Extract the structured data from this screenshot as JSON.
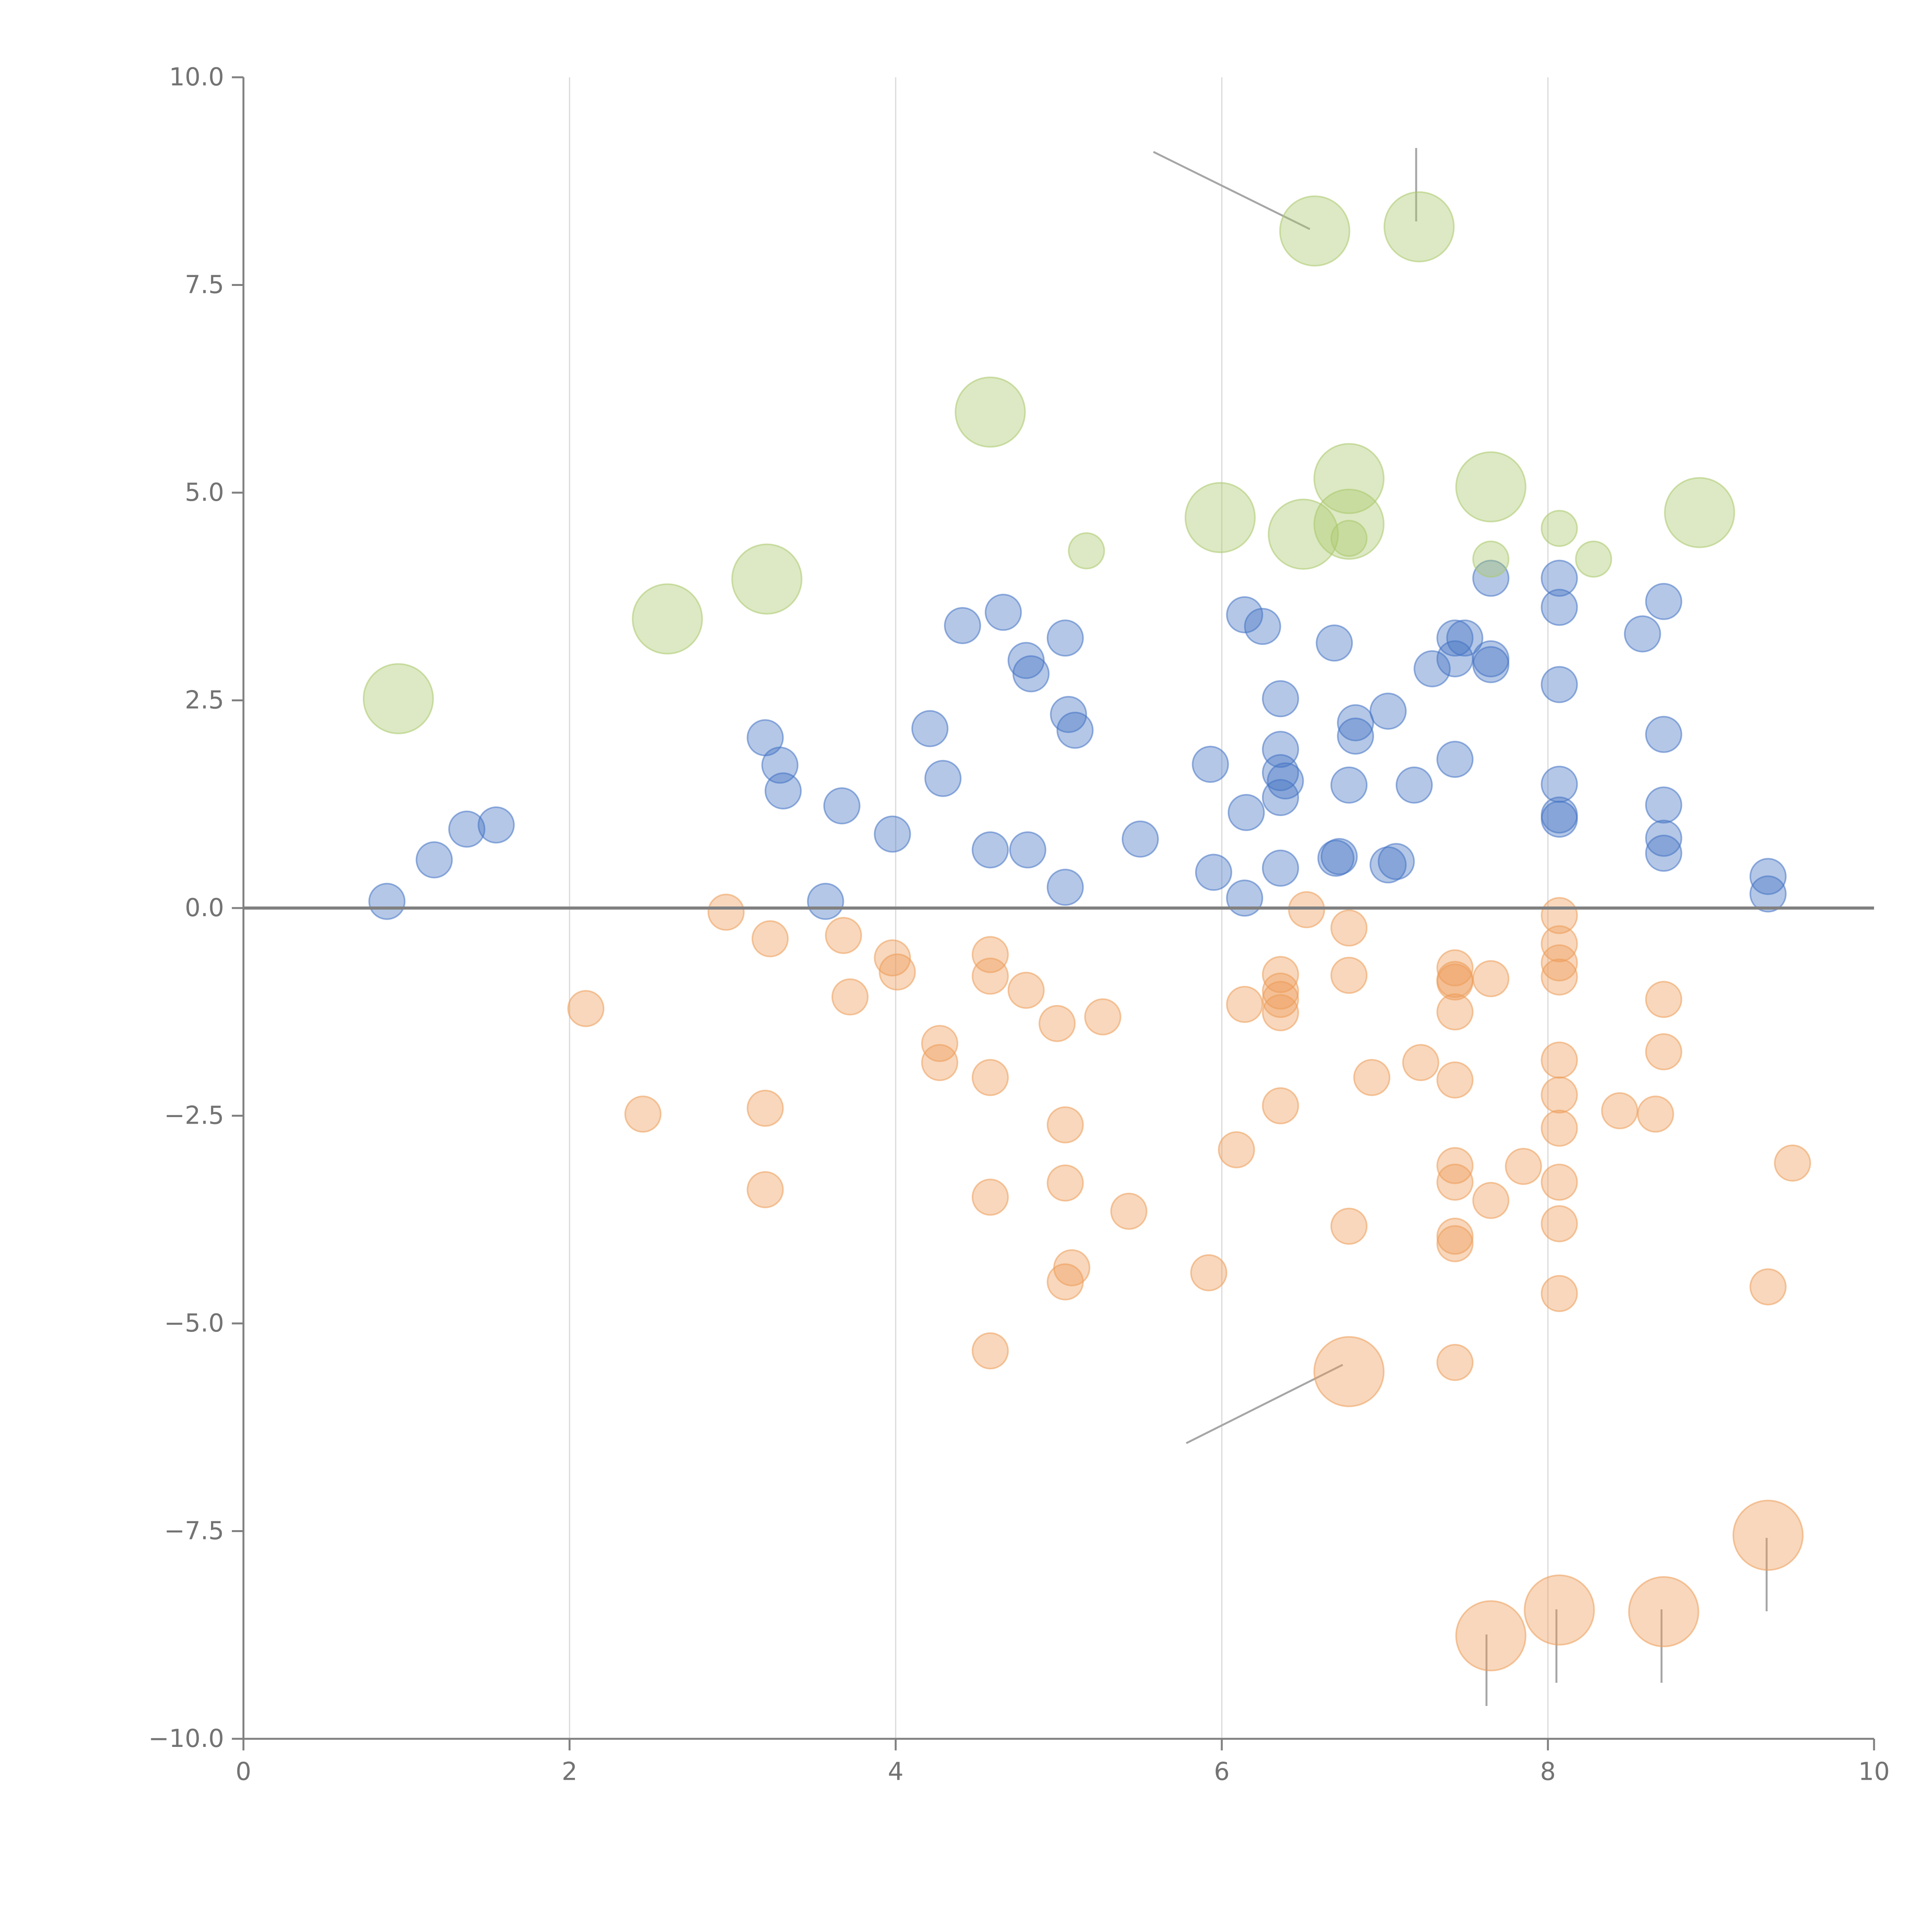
{
  "chart_data": {
    "type": "scatter",
    "title": "",
    "xlabel": "",
    "ylabel": "",
    "xlim": [
      0,
      10
    ],
    "ylim": [
      -10,
      10
    ],
    "x_ticks": [
      {
        "value": 0,
        "label": "0"
      },
      {
        "value": 2,
        "label": "2"
      },
      {
        "value": 4,
        "label": "4"
      },
      {
        "value": 6,
        "label": "6"
      },
      {
        "value": 8,
        "label": "8"
      },
      {
        "value": 10,
        "label": "10"
      }
    ],
    "y_ticks": [
      {
        "value": 10,
        "label": "10.0"
      },
      {
        "value": 7.5,
        "label": "7.5"
      },
      {
        "value": 5,
        "label": "5.0"
      },
      {
        "value": 2.5,
        "label": "2.5"
      },
      {
        "value": 0,
        "label": "0.0"
      },
      {
        "value": -2.5,
        "label": "−2.5"
      },
      {
        "value": -5,
        "label": "−5.0"
      },
      {
        "value": -7.5,
        "label": "−7.5"
      },
      {
        "value": -10,
        "label": "−10.0"
      }
    ],
    "vertical_grid_at": [
      2,
      4,
      6,
      8
    ],
    "reference_line_y": 0,
    "series": [
      {
        "name": "blue",
        "color": "#4472c4",
        "points": [
          [
            0.88,
            0.08,
            1
          ],
          [
            1.17,
            0.58,
            1
          ],
          [
            1.37,
            0.95,
            1
          ],
          [
            1.55,
            1.0,
            1
          ],
          [
            3.2,
            2.05,
            1
          ],
          [
            3.29,
            1.72,
            1
          ],
          [
            3.31,
            1.41,
            1
          ],
          [
            3.57,
            0.08,
            1
          ],
          [
            3.67,
            1.23,
            1
          ],
          [
            3.98,
            0.89,
            1
          ],
          [
            4.21,
            2.16,
            1
          ],
          [
            4.29,
            1.56,
            1
          ],
          [
            4.41,
            3.4,
            1
          ],
          [
            4.58,
            0.7,
            1
          ],
          [
            4.66,
            3.56,
            1
          ],
          [
            4.8,
            2.98,
            1
          ],
          [
            4.81,
            0.7,
            1
          ],
          [
            4.83,
            2.82,
            1
          ],
          [
            5.04,
            3.25,
            1
          ],
          [
            5.04,
            0.25,
            1
          ],
          [
            5.06,
            2.33,
            1
          ],
          [
            5.1,
            2.14,
            1
          ],
          [
            5.5,
            0.83,
            1
          ],
          [
            5.93,
            1.73,
            1
          ],
          [
            5.95,
            0.43,
            1
          ],
          [
            6.14,
            0.12,
            1
          ],
          [
            6.15,
            1.15,
            1
          ],
          [
            6.14,
            3.53,
            1
          ],
          [
            6.25,
            3.39,
            1
          ],
          [
            6.36,
            2.52,
            1
          ],
          [
            6.36,
            1.91,
            1
          ],
          [
            6.36,
            1.63,
            1
          ],
          [
            6.36,
            1.33,
            1
          ],
          [
            6.36,
            0.48,
            1
          ],
          [
            6.39,
            1.53,
            1
          ],
          [
            6.7,
            0.6,
            1
          ],
          [
            6.72,
            0.62,
            1
          ],
          [
            6.69,
            3.19,
            1
          ],
          [
            6.78,
            1.48,
            1
          ],
          [
            6.82,
            2.23,
            1
          ],
          [
            6.82,
            2.07,
            1
          ],
          [
            7.02,
            2.37,
            1
          ],
          [
            7.02,
            0.52,
            1
          ],
          [
            7.07,
            0.56,
            1
          ],
          [
            7.18,
            1.48,
            1
          ],
          [
            7.29,
            2.88,
            1
          ],
          [
            7.43,
            3.25,
            1
          ],
          [
            7.43,
            3.0,
            1
          ],
          [
            7.43,
            1.79,
            1
          ],
          [
            7.49,
            3.25,
            1
          ],
          [
            7.65,
            3.97,
            1
          ],
          [
            7.65,
            3.0,
            1
          ],
          [
            7.65,
            2.93,
            1
          ],
          [
            8.07,
            3.97,
            1
          ],
          [
            8.07,
            3.62,
            1
          ],
          [
            8.07,
            2.69,
            1
          ],
          [
            8.07,
            1.49,
            1
          ],
          [
            8.07,
            1.12,
            1
          ],
          [
            8.07,
            1.07,
            1
          ],
          [
            8.58,
            3.3,
            1
          ],
          [
            8.71,
            3.69,
            1
          ],
          [
            8.71,
            2.09,
            1
          ],
          [
            8.71,
            1.24,
            1
          ],
          [
            8.71,
            0.84,
            1
          ],
          [
            8.71,
            0.66,
            1
          ],
          [
            9.35,
            0.38,
            1
          ],
          [
            9.35,
            0.17,
            1
          ]
        ]
      },
      {
        "name": "orange",
        "color": "#ed9c57",
        "points": [
          [
            2.1,
            -1.21,
            1
          ],
          [
            2.45,
            -2.48,
            1
          ],
          [
            2.96,
            -0.05,
            1
          ],
          [
            3.2,
            -2.41,
            1
          ],
          [
            3.2,
            -3.39,
            1
          ],
          [
            3.23,
            -0.37,
            1
          ],
          [
            3.68,
            -0.33,
            1
          ],
          [
            3.72,
            -1.07,
            1
          ],
          [
            3.98,
            -0.6,
            1
          ],
          [
            4.01,
            -0.77,
            1
          ],
          [
            4.27,
            -1.63,
            1
          ],
          [
            4.27,
            -1.86,
            1
          ],
          [
            4.58,
            -0.56,
            1
          ],
          [
            4.58,
            -0.82,
            1
          ],
          [
            4.58,
            -2.04,
            1
          ],
          [
            4.58,
            -3.48,
            1
          ],
          [
            4.58,
            -5.33,
            1
          ],
          [
            4.8,
            -0.99,
            1
          ],
          [
            4.99,
            -1.39,
            1
          ],
          [
            5.04,
            -2.61,
            1
          ],
          [
            5.04,
            -3.31,
            1
          ],
          [
            5.04,
            -4.5,
            1
          ],
          [
            5.08,
            -4.33,
            1
          ],
          [
            5.27,
            -1.31,
            1
          ],
          [
            5.43,
            -3.65,
            1
          ],
          [
            5.92,
            -4.39,
            1
          ],
          [
            6.09,
            -2.91,
            1
          ],
          [
            6.14,
            -1.16,
            1
          ],
          [
            6.36,
            -0.8,
            1
          ],
          [
            6.36,
            -1.0,
            1
          ],
          [
            6.36,
            -1.1,
            1
          ],
          [
            6.36,
            -1.26,
            1
          ],
          [
            6.36,
            -2.38,
            1
          ],
          [
            6.52,
            -0.02,
            1
          ],
          [
            6.78,
            -0.24,
            1
          ],
          [
            6.78,
            -0.81,
            1
          ],
          [
            6.78,
            -3.83,
            1
          ],
          [
            6.92,
            -2.04,
            1
          ],
          [
            7.22,
            -1.86,
            1
          ],
          [
            7.43,
            -0.72,
            1
          ],
          [
            7.43,
            -0.86,
            1
          ],
          [
            7.43,
            -0.89,
            1
          ],
          [
            7.43,
            -1.25,
            1
          ],
          [
            7.43,
            -2.07,
            1
          ],
          [
            7.43,
            -3.1,
            1
          ],
          [
            7.43,
            -3.3,
            1
          ],
          [
            7.43,
            -3.95,
            1
          ],
          [
            7.43,
            -4.04,
            1
          ],
          [
            7.43,
            -5.47,
            1
          ],
          [
            7.65,
            -0.85,
            1
          ],
          [
            7.65,
            -3.52,
            1
          ],
          [
            7.85,
            -3.11,
            1
          ],
          [
            8.07,
            -0.09,
            1
          ],
          [
            8.07,
            -0.43,
            1
          ],
          [
            8.07,
            -0.66,
            1
          ],
          [
            8.07,
            -0.83,
            1
          ],
          [
            8.07,
            -1.83,
            1
          ],
          [
            8.07,
            -2.25,
            1
          ],
          [
            8.07,
            -2.65,
            1
          ],
          [
            8.07,
            -3.3,
            1
          ],
          [
            8.07,
            -3.8,
            1
          ],
          [
            8.07,
            -4.64,
            1
          ],
          [
            8.44,
            -2.44,
            1
          ],
          [
            8.66,
            -2.48,
            1
          ],
          [
            8.71,
            -1.1,
            1
          ],
          [
            8.71,
            -1.73,
            1
          ],
          [
            9.35,
            -4.56,
            1
          ],
          [
            9.5,
            -3.07,
            1
          ],
          [
            6.78,
            -5.58,
            2
          ],
          [
            7.65,
            -8.76,
            2
          ],
          [
            8.07,
            -8.45,
            2
          ],
          [
            8.71,
            -8.47,
            2
          ],
          [
            9.35,
            -7.55,
            2
          ]
        ]
      },
      {
        "name": "green",
        "color": "#a9c96b",
        "points": [
          [
            5.17,
            4.3,
            1
          ],
          [
            6.78,
            4.45,
            1
          ],
          [
            7.65,
            4.2,
            1
          ],
          [
            8.07,
            4.57,
            1
          ],
          [
            8.28,
            4.2,
            1
          ],
          [
            0.95,
            2.52,
            2
          ],
          [
            2.6,
            3.48,
            2
          ],
          [
            3.21,
            3.96,
            2
          ],
          [
            4.58,
            5.97,
            2
          ],
          [
            5.99,
            4.7,
            2
          ],
          [
            6.5,
            4.5,
            2
          ],
          [
            6.57,
            8.15,
            2
          ],
          [
            6.78,
            5.17,
            2
          ],
          [
            6.78,
            4.62,
            2
          ],
          [
            7.21,
            8.2,
            2
          ],
          [
            7.65,
            5.07,
            2
          ],
          [
            8.93,
            4.76,
            2
          ]
        ]
      }
    ]
  }
}
